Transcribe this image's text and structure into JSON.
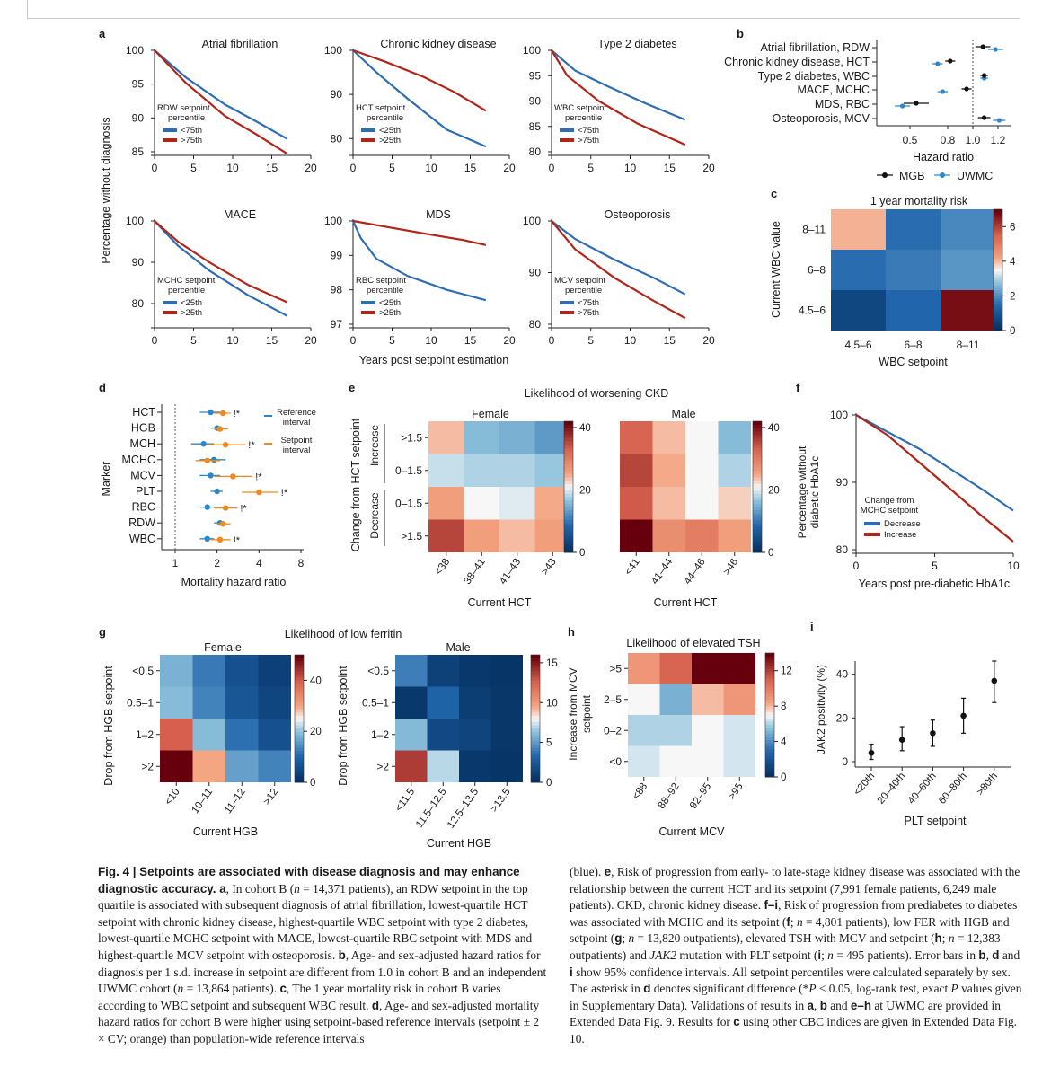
{
  "panel_letters": [
    "a",
    "b",
    "c",
    "d",
    "e",
    "f",
    "g",
    "h",
    "i"
  ],
  "panel_a": {
    "y_axis_label": "Percentage without diagnosis",
    "x_axis_label": "Years post setpoint estimation",
    "subplots": [
      {
        "title": "Atrial fibrillation",
        "legend_title": [
          "RDW setpoint",
          "percentile"
        ],
        "legend": [
          {
            "label": "<75th",
            "color": "#2e6db5"
          },
          {
            "label": ">75th",
            "color": "#b22418"
          }
        ],
        "ylim": [
          85,
          100
        ],
        "yticks": [
          "85",
          "90",
          "95",
          "100"
        ],
        "xticks": [
          "0",
          "5",
          "10",
          "15",
          "20"
        ],
        "blue": [
          [
            0,
            100
          ],
          [
            4,
            96
          ],
          [
            9,
            92
          ],
          [
            13,
            89.5
          ],
          [
            17,
            86.9
          ]
        ],
        "red": [
          [
            0,
            100
          ],
          [
            4,
            95.2
          ],
          [
            9,
            90.3
          ],
          [
            13,
            87.6
          ],
          [
            17,
            84.7
          ]
        ]
      },
      {
        "title": "Chronic kidney disease",
        "legend_title": [
          "HCT setpoint",
          "percentile"
        ],
        "legend": [
          {
            "label": "<25th",
            "color": "#2e6db5"
          },
          {
            "label": ">25th",
            "color": "#b22418"
          }
        ],
        "ylim": [
          77,
          100
        ],
        "yticks": [
          "80",
          "90",
          "100"
        ],
        "xticks": [
          "0",
          "5",
          "10",
          "15",
          "20"
        ],
        "blue": [
          [
            0,
            100
          ],
          [
            3,
            95
          ],
          [
            7,
            89
          ],
          [
            12,
            82
          ],
          [
            17,
            78.2
          ]
        ],
        "red": [
          [
            0,
            100
          ],
          [
            4,
            97.5
          ],
          [
            9,
            94
          ],
          [
            13,
            90.5
          ],
          [
            17,
            86.3
          ]
        ]
      },
      {
        "title": "Type 2 diabetes",
        "legend_title": [
          "WBC setpoint",
          "percentile"
        ],
        "legend": [
          {
            "label": "<75th",
            "color": "#2e6db5"
          },
          {
            "label": ">75th",
            "color": "#b22418"
          }
        ],
        "ylim": [
          80,
          100
        ],
        "yticks": [
          "80",
          "85",
          "90",
          "95",
          "100"
        ],
        "xticks": [
          "0",
          "5",
          "10",
          "15",
          "20"
        ],
        "blue": [
          [
            0,
            100
          ],
          [
            3,
            96
          ],
          [
            7,
            93
          ],
          [
            12,
            89.5
          ],
          [
            17,
            86.3
          ]
        ],
        "red": [
          [
            0,
            100
          ],
          [
            2,
            95
          ],
          [
            6,
            90
          ],
          [
            11,
            85.5
          ],
          [
            17,
            81.4
          ]
        ]
      },
      {
        "title": "MACE",
        "legend_title": [
          "MCHC setpoint",
          "percentile"
        ],
        "legend": [
          {
            "label": "<25th",
            "color": "#2e6db5"
          },
          {
            "label": ">25th",
            "color": "#b22418"
          }
        ],
        "ylim": [
          75,
          100
        ],
        "yticks": [
          "80",
          "90",
          "100"
        ],
        "xticks": [
          "0",
          "5",
          "10",
          "15",
          "20"
        ],
        "blue": [
          [
            0,
            100
          ],
          [
            3,
            94
          ],
          [
            7,
            88
          ],
          [
            12,
            82
          ],
          [
            17,
            77
          ]
        ],
        "red": [
          [
            0,
            100
          ],
          [
            3,
            95
          ],
          [
            7,
            90
          ],
          [
            12,
            84.5
          ],
          [
            17,
            80.3
          ]
        ]
      },
      {
        "title": "MDS",
        "legend_title": [
          "RBC setpoint",
          "percentile"
        ],
        "legend": [
          {
            "label": "<25th",
            "color": "#2e6db5"
          },
          {
            "label": ">25th",
            "color": "#b22418"
          }
        ],
        "ylim": [
          97,
          100
        ],
        "yticks": [
          "97",
          "98",
          "99",
          "100"
        ],
        "xticks": [
          "0",
          "5",
          "10",
          "15",
          "20"
        ],
        "blue": [
          [
            0,
            100
          ],
          [
            1,
            99.5
          ],
          [
            3,
            98.9
          ],
          [
            7,
            98.4
          ],
          [
            12,
            98
          ],
          [
            17,
            97.7
          ]
        ],
        "red": [
          [
            0,
            100
          ],
          [
            5,
            99.8
          ],
          [
            10,
            99.6
          ],
          [
            14,
            99.45
          ],
          [
            17,
            99.3
          ]
        ]
      },
      {
        "title": "Osteoporosis",
        "legend_title": [
          "MCV setpoint",
          "percentile"
        ],
        "legend": [
          {
            "label": "<75th",
            "color": "#2e6db5"
          },
          {
            "label": ">75th",
            "color": "#b22418"
          }
        ],
        "ylim": [
          80,
          100
        ],
        "yticks": [
          "80",
          "90",
          "100"
        ],
        "xticks": [
          "0",
          "5",
          "10",
          "15",
          "20"
        ],
        "blue": [
          [
            0,
            100
          ],
          [
            3,
            96.5
          ],
          [
            8,
            92.5
          ],
          [
            13,
            89
          ],
          [
            17,
            85.8
          ]
        ],
        "red": [
          [
            0,
            100
          ],
          [
            3,
            94.5
          ],
          [
            8,
            89
          ],
          [
            13,
            84.5
          ],
          [
            17,
            81.2
          ]
        ]
      }
    ]
  },
  "panel_b": {
    "rows": [
      "Atrial fibrillation, RDW",
      "Chronic kidney disease, HCT",
      "Type 2 diabetes, WBC",
      "MACE, MCHC",
      "MDS, RBC",
      "Osteoporosis, MCV"
    ],
    "mgb": [
      [
        1.08,
        1.02,
        1.14
      ],
      [
        0.82,
        0.78,
        0.86
      ],
      [
        1.09,
        1.06,
        1.12
      ],
      [
        0.95,
        0.91,
        0.99
      ],
      [
        0.55,
        0.45,
        0.65
      ],
      [
        1.09,
        1.04,
        1.14
      ]
    ],
    "uwmc": [
      [
        1.18,
        1.12,
        1.24
      ],
      [
        0.72,
        0.68,
        0.76
      ],
      [
        1.09,
        1.06,
        1.12
      ],
      [
        0.76,
        0.72,
        0.8
      ],
      [
        0.44,
        0.38,
        0.5
      ],
      [
        1.21,
        1.16,
        1.26
      ]
    ],
    "xticks": [
      "0.5",
      "0.8",
      "1.0",
      "1.2"
    ],
    "xlabel": "Hazard ratio",
    "legend": [
      {
        "label": "MGB",
        "color": "#111111"
      },
      {
        "label": "UWMC",
        "color": "#2e86c8"
      }
    ]
  },
  "panel_c": {
    "title": "1 year mortality risk",
    "ylabel": "Current WBC value",
    "xlabel": "WBC setpoint",
    "row_labels": [
      "8–11",
      "6–8",
      "4.5–6"
    ],
    "col_labels": [
      "4.5–6",
      "6–8",
      "8–11"
    ],
    "values": [
      [
        4.1,
        1.5,
        1.9
      ],
      [
        1.5,
        1.7,
        2.1
      ],
      [
        0.6,
        1.4,
        6.8
      ]
    ],
    "vmax": 7,
    "ticks": [
      "0",
      "2",
      "4",
      "6"
    ]
  },
  "panel_d": {
    "ylabel": "Marker",
    "xlabel": "Mortality hazard ratio",
    "xticks": [
      "1",
      "2",
      "4",
      "8"
    ],
    "legend": [
      {
        "label": [
          "Reference",
          "interval"
        ],
        "color": "#2e86c8"
      },
      {
        "label": [
          "Setpoint",
          "interval"
        ],
        "color": "#f08a1c"
      }
    ],
    "rows": [
      {
        "marker": "HCT",
        "ref": [
          1.8,
          1.5,
          2.1
        ],
        "set": [
          2.2,
          1.9,
          2.5
        ],
        "star": "!*"
      },
      {
        "marker": "HGB",
        "ref": [
          2.0,
          1.8,
          2.2
        ],
        "set": [
          2.1,
          1.9,
          2.4
        ],
        "star": ""
      },
      {
        "marker": "MCH",
        "ref": [
          1.6,
          1.3,
          1.9
        ],
        "set": [
          2.3,
          1.7,
          3.2
        ],
        "star": "!*"
      },
      {
        "marker": "MCHC",
        "ref": [
          1.9,
          1.5,
          2.3
        ],
        "set": [
          1.7,
          1.4,
          2.1
        ],
        "star": ""
      },
      {
        "marker": "MCV",
        "ref": [
          1.8,
          1.5,
          2.1
        ],
        "set": [
          2.6,
          1.9,
          3.6
        ],
        "star": "!*"
      },
      {
        "marker": "PLT",
        "ref": [
          2.0,
          1.8,
          2.2
        ],
        "set": [
          4.0,
          3.0,
          5.5
        ],
        "star": "!*"
      },
      {
        "marker": "RBC",
        "ref": [
          1.7,
          1.5,
          1.9
        ],
        "set": [
          2.3,
          1.9,
          2.8
        ],
        "star": "!*"
      },
      {
        "marker": "RDW",
        "ref": [
          2.1,
          1.9,
          2.3
        ],
        "set": [
          2.2,
          2.0,
          2.5
        ],
        "star": ""
      },
      {
        "marker": "WBC",
        "ref": [
          1.7,
          1.5,
          1.9
        ],
        "set": [
          2.1,
          1.8,
          2.5
        ],
        "star": "!*"
      }
    ]
  },
  "panel_e": {
    "title": "Likelihood of worsening CKD",
    "ylabel": "Change from HCT setpoint",
    "group_labels": [
      "Increase",
      "Decrease"
    ],
    "row_labels": [
      ">1.5",
      "0–1.5",
      "0–1.5",
      ">1.5"
    ],
    "female": {
      "title": "Female",
      "xlabel": "Current HCT",
      "col_labels": [
        "<38",
        "38–41",
        "41–43",
        ">43"
      ],
      "values": [
        [
          24,
          16,
          15,
          13
        ],
        [
          19,
          18,
          18,
          17
        ],
        [
          26,
          21,
          20,
          25
        ],
        [
          36,
          26,
          24,
          26
        ]
      ]
    },
    "male": {
      "title": "Male",
      "xlabel": "Current HCT",
      "col_labels": [
        "<41",
        "41–44",
        "44–46",
        ">46"
      ],
      "values": [
        [
          33,
          24,
          21,
          16
        ],
        [
          36,
          25,
          21,
          18
        ],
        [
          34,
          24,
          21,
          23
        ],
        [
          44,
          28,
          30,
          26
        ]
      ]
    },
    "vmax": 42,
    "ticks": [
      "0",
      "20",
      "40"
    ]
  },
  "panel_f": {
    "ylabel": [
      "Percentage without",
      "diabetic HbA1c"
    ],
    "xlabel": "Years post pre-diabetic HbA1c",
    "legend_title": [
      "Change from",
      "MCHC setpoint"
    ],
    "legend": [
      {
        "label": "Decrease",
        "color": "#2e6db5"
      },
      {
        "label": "Increase",
        "color": "#b22418"
      }
    ],
    "yticks": [
      "80",
      "90",
      "100"
    ],
    "xticks": [
      "0",
      "5",
      "10"
    ],
    "blue": [
      [
        0,
        100
      ],
      [
        2,
        97.5
      ],
      [
        4,
        95
      ],
      [
        6,
        92
      ],
      [
        8,
        89
      ],
      [
        10,
        85.8
      ]
    ],
    "red": [
      [
        0,
        100
      ],
      [
        2,
        97
      ],
      [
        4,
        93
      ],
      [
        6,
        89
      ],
      [
        8,
        85
      ],
      [
        10,
        81.2
      ]
    ]
  },
  "panel_g": {
    "title": "Likelihood of low ferritin",
    "ylabel": "Drop from HGB setpoint",
    "row_labels": [
      "<0.5",
      "0.5–1",
      "1–2",
      ">2"
    ],
    "female": {
      "title": "Female",
      "xlabel": "Current HGB",
      "col_labels": [
        "<10",
        "10–11",
        "11–12",
        ">12"
      ],
      "values": [
        [
          18,
          12,
          6,
          3
        ],
        [
          19,
          13,
          7,
          4
        ],
        [
          40,
          19,
          11,
          6
        ],
        [
          50,
          30,
          16,
          13
        ]
      ],
      "vmax": 50,
      "ticks": [
        "0",
        "20",
        "40"
      ]
    },
    "male": {
      "title": "Male",
      "xlabel": "Current HGB",
      "col_labels": [
        "<11.5",
        "11.5–12.5",
        "12.5–13.5",
        ">13.5"
      ],
      "values": [
        [
          4,
          1,
          0.5,
          0.3
        ],
        [
          0.5,
          3,
          0.8,
          0.4
        ],
        [
          6,
          1.5,
          1.2,
          0.4
        ],
        [
          14,
          7,
          0.5,
          0.3
        ]
      ],
      "vmax": 16,
      "ticks": [
        "0",
        "5",
        "10",
        "15"
      ]
    }
  },
  "panel_h": {
    "title": "Likelihood of elevated TSH",
    "ylabel": [
      "Increase from MCV",
      "setpoint"
    ],
    "xlabel": "Current MCV",
    "row_labels": [
      ">5",
      "2–5",
      "0–2",
      "<0"
    ],
    "col_labels": [
      "<88",
      "88–92",
      "92–95",
      ">95"
    ],
    "values": [
      [
        9,
        11,
        14,
        14
      ],
      [
        7,
        5,
        8,
        9
      ],
      [
        6,
        6,
        7,
        6.5
      ],
      [
        6.5,
        7,
        7,
        6.5
      ]
    ],
    "vmax": 14,
    "ticks": [
      "0",
      "4",
      "8",
      "12"
    ]
  },
  "panel_i": {
    "ylabel": "JAK2 positivity (%)",
    "xlabel": "PLT setpoint",
    "categories": [
      "<20th",
      "20–40th",
      "40–60th",
      "60–80th",
      ">80th"
    ],
    "values": [
      4,
      10,
      13,
      21,
      37
    ],
    "ci": [
      [
        1,
        8
      ],
      [
        5,
        16
      ],
      [
        7,
        19
      ],
      [
        13,
        29
      ],
      [
        27,
        46
      ]
    ],
    "yticks": [
      "0",
      "20",
      "40"
    ]
  },
  "caption": {
    "left_html": "<b>Fig. 4 | Setpoints are associated with disease diagnosis and may enhance diagnostic accuracy. a</b>, In cohort B (<i>n</i> = 14,371 patients), an RDW setpoint in the top quartile is associated with subsequent diagnosis of atrial fibrillation, lowest-quartile HCT setpoint with chronic kidney disease, highest-quartile WBC setpoint with type 2 diabetes, lowest-quartile MCHC setpoint with MACE, lowest-quartile RBC setpoint with MDS and highest-quartile MCV setpoint with osteoporosis. <b>b</b>, Age- and sex-adjusted hazard ratios for diagnosis per 1 s.d. increase in setpoint are different from 1.0 in cohort B and an independent UWMC cohort (<i>n</i> = 13,864 patients). <b>c</b>, The 1 year mortality risk in cohort B varies according to WBC setpoint and subsequent WBC result. <b>d</b>, Age- and sex-adjusted mortality hazard ratios for cohort B were higher using setpoint-based reference intervals (setpoint ± 2 × CV; orange) than population-wide reference intervals",
    "right_html": "(blue). <b>e</b>, Risk of progression from early- to late-stage kidney disease was associated with the relationship between the current HCT and its setpoint (7,991 female patients, 6,249 male patients). CKD, chronic kidney disease. <b>f–i</b>, Risk of progression from prediabetes to diabetes was associated with MCHC and its setpoint (<b>f</b>; <i>n</i> = 4,801 patients), low FER with HGB and setpoint (<b>g</b>; <i>n</i> = 13,820 outpatients), elevated TSH with MCV and setpoint (<b>h</b>; <i>n</i> = 12,383 outpatients) and <i>JAK2</i> mutation with PLT setpoint (<b>i</b>; <i>n</i> = 495 patients). Error bars in <b>b</b>, <b>d</b> and <b>i</b> show 95% confidence intervals. All setpoint percentiles were calculated separately by sex. The asterisk in <b>d</b> denotes significant difference (*<i>P</i> &lt; 0.05, log-rank test, exact <i>P</i> values given in Supplementary Data). Validations of results in <b>a</b>, <b>b</b> and <b>e–h</b> at UWMC are provided in Extended Data Fig. 9. Results for <b>c</b> using other CBC indices are given in Extended Data Fig. 10."
  }
}
